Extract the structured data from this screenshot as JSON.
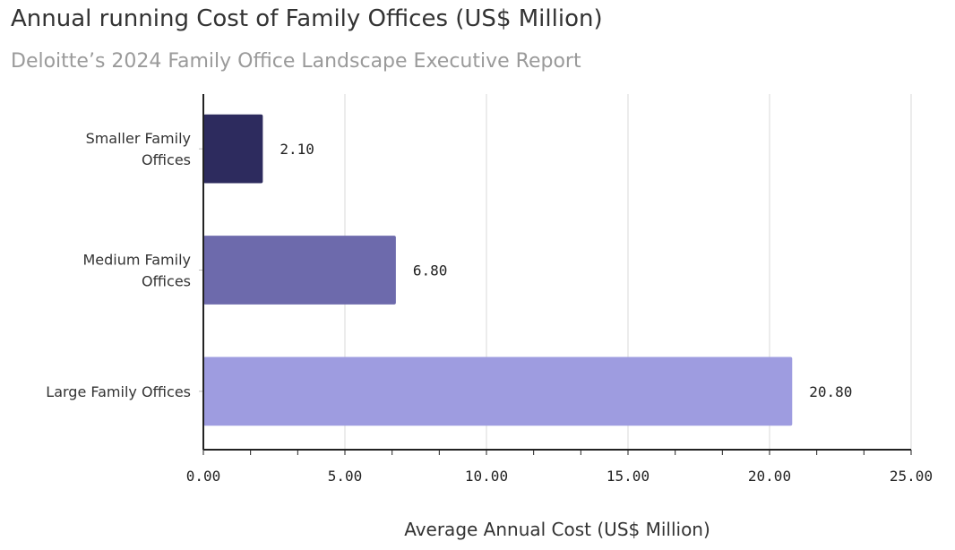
{
  "chart_data": {
    "type": "bar",
    "orientation": "horizontal",
    "title": "Annual running Cost of Family Offices (US$ Million)",
    "subtitle": "Deloitte’s 2024 Family Office Landscape Executive Report",
    "categories": [
      [
        "Smaller Family",
        "Offices"
      ],
      [
        "Medium Family",
        "Offices"
      ],
      [
        "Large Family Offices"
      ]
    ],
    "values": [
      2.1,
      6.8,
      20.8
    ],
    "value_labels": [
      "2.10",
      "6.80",
      "20.80"
    ],
    "colors": [
      "#2d2b5e",
      "#6d6aac",
      "#9e9ce0"
    ],
    "xlabel": "Average Annual Cost (US$ Million)",
    "ylabel": "",
    "xlim": [
      0,
      25
    ],
    "x_ticks": [
      0,
      5,
      10,
      15,
      20,
      25
    ],
    "x_tick_labels": [
      "0.00",
      "5.00",
      "10.00",
      "15.00",
      "20.00",
      "25.00"
    ],
    "grid": true,
    "legend": "none"
  }
}
